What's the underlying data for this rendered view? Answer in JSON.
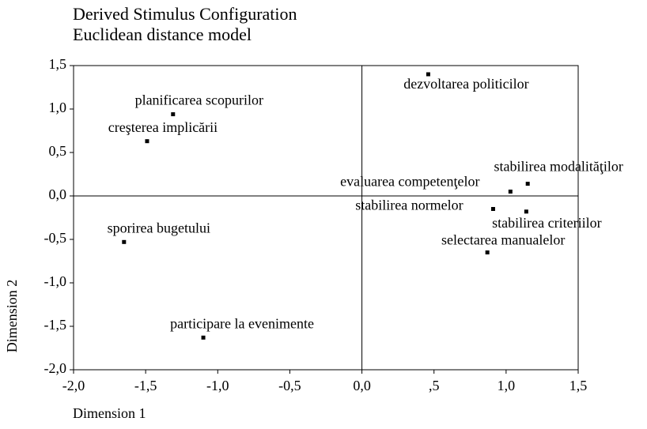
{
  "chart_data": {
    "type": "scatter",
    "title": "Derived Stimulus Configuration",
    "subtitle": "Euclidean distance model",
    "x_label": "Dimension 1",
    "y_label": "Dimension 2",
    "labels": [
      "dezvoltarea politicilor",
      "planificarea scopurilor",
      "creşterea implicării",
      "stabilirea modalităţilor",
      "evaluarea competenţelor",
      "stabilirea normelor",
      "stabilirea criteriilor",
      "selectarea manualelor",
      "sporirea bugetului",
      "participare la evenimente"
    ],
    "x": [
      0.46,
      -1.31,
      -1.49,
      1.15,
      1.03,
      0.91,
      1.14,
      0.87,
      -1.65,
      -1.1
    ],
    "values": [
      1.4,
      0.94,
      0.63,
      0.14,
      0.05,
      -0.15,
      -0.18,
      -0.65,
      -0.53,
      -1.63
    ],
    "color": "#000000",
    "xlim": [
      -2,
      1.5
    ],
    "ylim": [
      -2,
      1.5
    ],
    "xticks": [
      {
        "value": -2,
        "label": "-2,0"
      },
      {
        "value": -1.5,
        "label": "-1,5"
      },
      {
        "value": -1,
        "label": "-1,0"
      },
      {
        "value": -0.5,
        "label": "-0,5"
      },
      {
        "value": 0,
        "label": "0,0"
      },
      {
        "value": 0.5,
        "label": ",5"
      },
      {
        "value": 1,
        "label": "1,0"
      },
      {
        "value": 1.5,
        "label": "1,5"
      }
    ],
    "yticks": [
      {
        "value": 1.5,
        "label": "1,5"
      },
      {
        "value": 1,
        "label": "1,0"
      },
      {
        "value": 0.5,
        "label": "0,5"
      },
      {
        "value": 0,
        "label": "0,0"
      },
      {
        "value": -0.5,
        "label": "-0,5"
      },
      {
        "value": -1,
        "label": "-1,0"
      },
      {
        "value": -1.5,
        "label": "-1,5"
      },
      {
        "value": -2,
        "label": "-2,0"
      }
    ]
  }
}
